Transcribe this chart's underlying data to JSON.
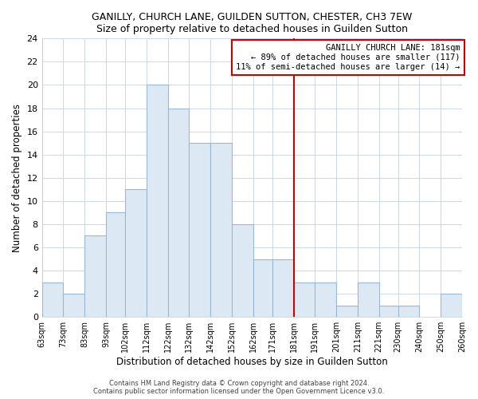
{
  "title": "GANILLY, CHURCH LANE, GUILDEN SUTTON, CHESTER, CH3 7EW",
  "subtitle": "Size of property relative to detached houses in Guilden Sutton",
  "xlabel": "Distribution of detached houses by size in Guilden Sutton",
  "ylabel": "Number of detached properties",
  "bin_edges": [
    63,
    73,
    83,
    93,
    102,
    112,
    122,
    132,
    142,
    152,
    162,
    171,
    181,
    191,
    201,
    211,
    221,
    230,
    240,
    250,
    260
  ],
  "bar_heights": [
    3,
    2,
    7,
    9,
    11,
    20,
    18,
    15,
    15,
    8,
    5,
    5,
    3,
    3,
    1,
    3,
    1,
    1,
    0,
    2
  ],
  "bar_color": "#dce9f5",
  "bar_edge_color": "#9ab8d4",
  "vline_x": 181,
  "vline_color": "#cc0000",
  "annotation_title": "GANILLY CHURCH LANE: 181sqm",
  "annotation_line1": "← 89% of detached houses are smaller (117)",
  "annotation_line2": "11% of semi-detached houses are larger (14) →",
  "annotation_box_color": "#ffffff",
  "annotation_box_edge": "#cc0000",
  "tick_labels": [
    "63sqm",
    "73sqm",
    "83sqm",
    "93sqm",
    "102sqm",
    "112sqm",
    "122sqm",
    "132sqm",
    "142sqm",
    "152sqm",
    "162sqm",
    "171sqm",
    "181sqm",
    "191sqm",
    "201sqm",
    "211sqm",
    "221sqm",
    "230sqm",
    "240sqm",
    "250sqm",
    "260sqm"
  ],
  "ylim": [
    0,
    24
  ],
  "yticks": [
    0,
    2,
    4,
    6,
    8,
    10,
    12,
    14,
    16,
    18,
    20,
    22,
    24
  ],
  "footer1": "Contains HM Land Registry data © Crown copyright and database right 2024.",
  "footer2": "Contains public sector information licensed under the Open Government Licence v3.0."
}
